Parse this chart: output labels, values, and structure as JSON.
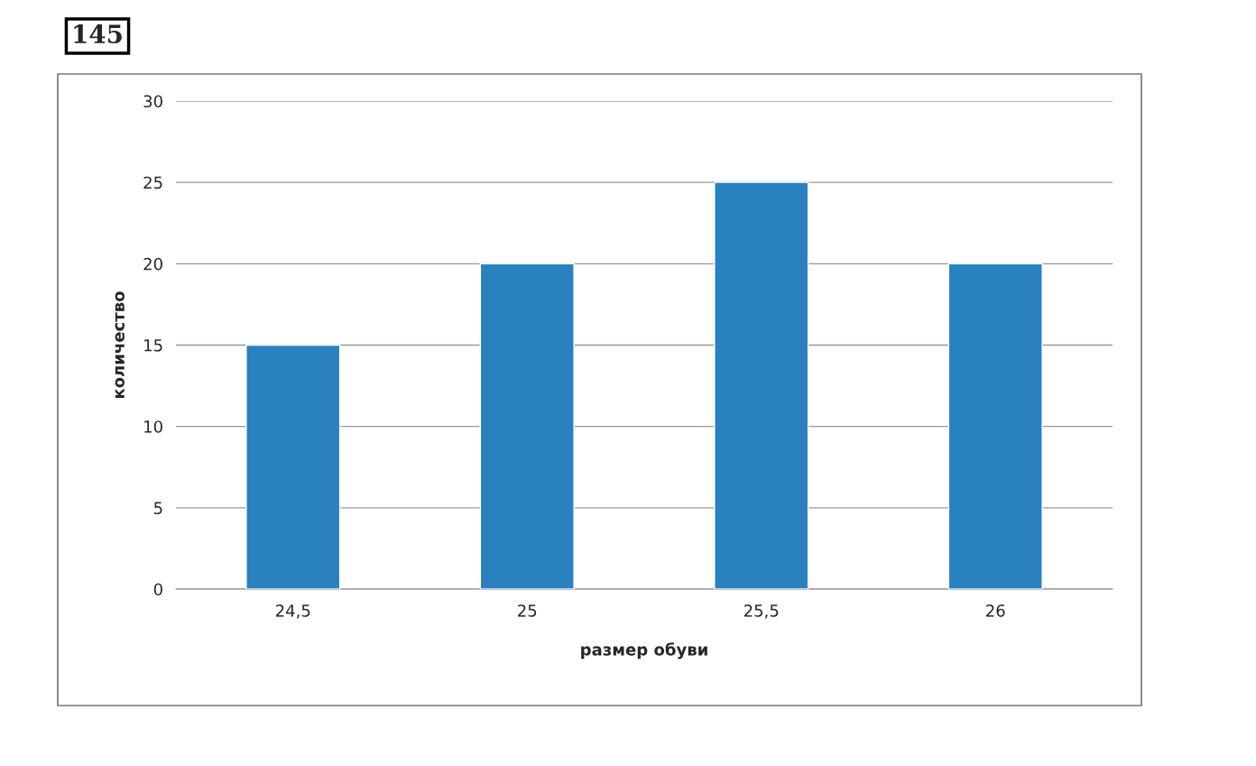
{
  "chart_data": {
    "type": "bar",
    "categories": [
      "24,5",
      "25",
      "25,5",
      "26"
    ],
    "values": [
      15,
      20,
      25,
      20
    ],
    "color": "#2a81c0",
    "xlabel": "размер обуви",
    "ylabel": "количество",
    "ylim": [
      0,
      30
    ],
    "yticks": [
      0,
      5,
      10,
      15,
      20,
      25,
      30
    ],
    "grid": "y",
    "legend": false,
    "annotations": [
      "145"
    ]
  }
}
